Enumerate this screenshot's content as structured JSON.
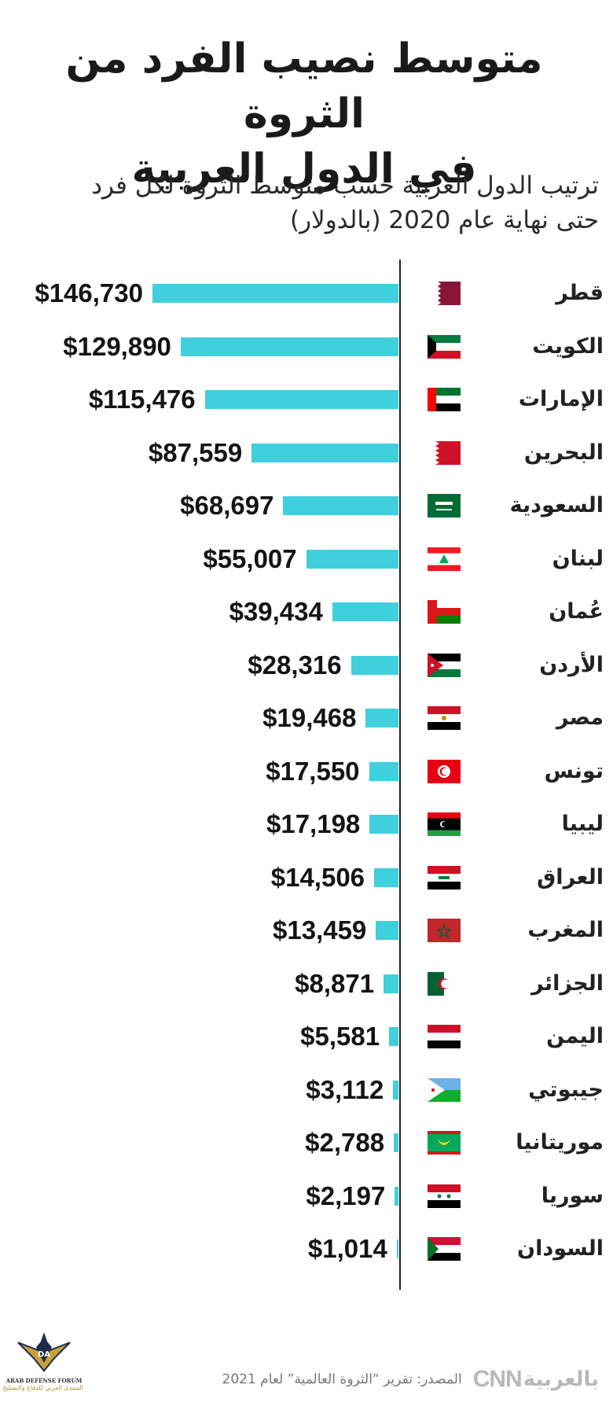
{
  "header": {
    "title_line1": "متوسط نصيب الفرد من الثروة",
    "title_line2": "في الدول العربية",
    "subtitle_line1": "ترتيب الدول العربية حسب متوسط الثروة لكل فرد",
    "subtitle_line2": "حتى نهاية عام 2020 (بالدولار)"
  },
  "colors": {
    "bar": "#40cfdc",
    "axis": "#222222"
  },
  "chart_data": {
    "type": "bar",
    "orientation": "horizontal",
    "categories": [
      "قطر",
      "الكويت",
      "الإمارات",
      "البحرين",
      "السعودية",
      "لبنان",
      "عُمان",
      "الأردن",
      "مصر",
      "تونس",
      "ليبيا",
      "العراق",
      "المغرب",
      "الجزائر",
      "اليمن",
      "جيبوتي",
      "موريتانيا",
      "سوريا",
      "السودان"
    ],
    "values": [
      146730,
      129890,
      115476,
      87559,
      68697,
      55007,
      39434,
      28316,
      19468,
      17550,
      17198,
      14506,
      13459,
      8871,
      5581,
      3112,
      2788,
      2197,
      1014
    ],
    "value_labels": [
      "$146,730",
      "$129,890",
      "$115,476",
      "$87,559",
      "$68,697",
      "$55,007",
      "$39,434",
      "$28,316",
      "$19,468",
      "$17,550",
      "$17,198",
      "$14,506",
      "$13,459",
      "$8,871",
      "$5,581",
      "$3,112",
      "$2,788",
      "$2,197",
      "$1,014"
    ],
    "flags": [
      "qatar-flag",
      "kuwait-flag",
      "uae-flag",
      "bahrain-flag",
      "saudi-flag",
      "lebanon-flag",
      "oman-flag",
      "jordan-flag",
      "egypt-flag",
      "tunisia-flag",
      "libya-flag",
      "iraq-flag",
      "morocco-flag",
      "algeria-flag",
      "yemen-flag",
      "djibouti-flag",
      "mauritania-flag",
      "syria-flag",
      "sudan-flag"
    ],
    "xlim": [
      0,
      150000
    ],
    "legend": "none",
    "grid": false
  },
  "footer": {
    "source": "المصدر: تقرير “الثروة العالمية” لعام 2021",
    "logo_cnn": "CNN",
    "logo_arabic": "بالعربية",
    "forum_name": "ARAB DEFENSE FORUM",
    "forum_arabic": "المنتدى العربي للدفاع والتسليح"
  }
}
